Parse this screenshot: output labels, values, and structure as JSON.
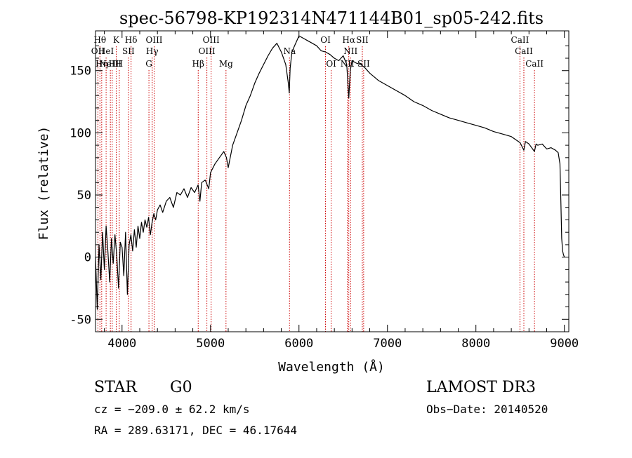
{
  "chart_data": {
    "type": "line",
    "title": "spec-56798-KP192314N471144B01_sp05-242.fits",
    "xlabel": "Wavelength (Å)",
    "ylabel": "Flux (relative)",
    "xlim": [
      3700,
      9050
    ],
    "ylim": [
      -60,
      182
    ],
    "x_ticks": [
      4000,
      5000,
      6000,
      7000,
      8000,
      9000
    ],
    "y_ticks": [
      -50,
      0,
      50,
      100,
      150
    ],
    "grid": false,
    "series": [
      {
        "name": "flux",
        "x": [
          3700,
          3720,
          3740,
          3760,
          3780,
          3800,
          3820,
          3840,
          3860,
          3880,
          3900,
          3920,
          3940,
          3960,
          3980,
          4000,
          4020,
          4040,
          4060,
          4080,
          4100,
          4120,
          4140,
          4160,
          4180,
          4200,
          4220,
          4240,
          4260,
          4280,
          4300,
          4320,
          4340,
          4360,
          4380,
          4400,
          4430,
          4460,
          4500,
          4540,
          4580,
          4620,
          4660,
          4700,
          4740,
          4780,
          4820,
          4860,
          4880,
          4900,
          4940,
          4980,
          5000,
          5050,
          5100,
          5150,
          5180,
          5200,
          5250,
          5300,
          5350,
          5400,
          5450,
          5500,
          5550,
          5600,
          5650,
          5700,
          5750,
          5800,
          5850,
          5880,
          5890,
          5900,
          5920,
          5950,
          6000,
          6050,
          6100,
          6150,
          6200,
          6250,
          6300,
          6350,
          6400,
          6450,
          6500,
          6540,
          6563,
          6580,
          6600,
          6650,
          6700,
          6750,
          6800,
          6850,
          6900,
          7000,
          7100,
          7200,
          7300,
          7400,
          7500,
          7600,
          7700,
          7800,
          7900,
          8000,
          8100,
          8200,
          8300,
          8400,
          8480,
          8500,
          8542,
          8560,
          8600,
          8662,
          8680,
          8700,
          8750,
          8800,
          8850,
          8900,
          8930,
          8950,
          8960,
          8970,
          8980,
          8990,
          9000
        ],
        "y": [
          0,
          -42,
          10,
          -18,
          20,
          -10,
          25,
          5,
          -20,
          15,
          -5,
          18,
          2,
          -25,
          12,
          8,
          -15,
          20,
          -30,
          10,
          18,
          5,
          22,
          8,
          25,
          15,
          28,
          20,
          30,
          24,
          32,
          18,
          28,
          35,
          30,
          38,
          42,
          36,
          45,
          48,
          40,
          52,
          50,
          55,
          48,
          56,
          52,
          58,
          45,
          60,
          62,
          55,
          68,
          75,
          80,
          85,
          80,
          72,
          90,
          100,
          110,
          122,
          130,
          140,
          148,
          155,
          162,
          168,
          172,
          165,
          155,
          140,
          132,
          152,
          165,
          170,
          178,
          176,
          174,
          172,
          170,
          166,
          165,
          163,
          160,
          158,
          162,
          155,
          128,
          150,
          158,
          156,
          155,
          152,
          148,
          145,
          142,
          138,
          134,
          130,
          125,
          122,
          118,
          115,
          112,
          110,
          108,
          106,
          104,
          101,
          99,
          97,
          93,
          92,
          86,
          93,
          91,
          85,
          91,
          90,
          91,
          87,
          88,
          86,
          84,
          75,
          45,
          15,
          5,
          2,
          0
        ]
      }
    ],
    "lines": [
      {
        "x": 3750,
        "label": "Hθ",
        "row": 1
      },
      {
        "x": 3727,
        "label": "OII",
        "row": 2
      },
      {
        "x": 3770,
        "label": "Hη",
        "row": 3
      },
      {
        "x": 3820,
        "label": "HeI",
        "row": 2
      },
      {
        "x": 3868,
        "label": "NeIII",
        "row": 3
      },
      {
        "x": 3889,
        "label": "H",
        "row": 3
      },
      {
        "x": 3934,
        "label": "K",
        "row": 1
      },
      {
        "x": 3969,
        "label": "H",
        "row": 3
      },
      {
        "x": 4072,
        "label": "SII",
        "row": 2
      },
      {
        "x": 4102,
        "label": "Hδ",
        "row": 1
      },
      {
        "x": 4304,
        "label": "G",
        "row": 3
      },
      {
        "x": 4341,
        "label": "Hγ",
        "row": 2
      },
      {
        "x": 4363,
        "label": "OIII",
        "row": 1
      },
      {
        "x": 4861,
        "label": "Hβ",
        "row": 3
      },
      {
        "x": 4959,
        "label": "OIII",
        "row": 2
      },
      {
        "x": 5007,
        "label": "OIII",
        "row": 1
      },
      {
        "x": 5175,
        "label": "Mg",
        "row": 3
      },
      {
        "x": 5893,
        "label": "Na",
        "row": 2
      },
      {
        "x": 6300,
        "label": "OI",
        "row": 1
      },
      {
        "x": 6364,
        "label": "OI",
        "row": 3
      },
      {
        "x": 6548,
        "label": "NII",
        "row": 3
      },
      {
        "x": 6563,
        "label": "Hα",
        "row": 1
      },
      {
        "x": 6583,
        "label": "NII",
        "row": 2
      },
      {
        "x": 6716,
        "label": "SII",
        "row": 1
      },
      {
        "x": 6731,
        "label": "SII",
        "row": 3
      },
      {
        "x": 8498,
        "label": "CaII",
        "row": 1
      },
      {
        "x": 8542,
        "label": "CaII",
        "row": 2
      },
      {
        "x": 8662,
        "label": "CaII",
        "row": 3
      }
    ],
    "line_color": "#cc0000"
  },
  "info": {
    "object_type": "STAR",
    "subclass": "G0",
    "survey": "LAMOST DR3",
    "redshift": "cz = −209.0 ± 62.2 km/s",
    "obs_date": "Obs−Date: 20140520",
    "coords": "RA = 289.63171, DEC =  46.17644"
  }
}
